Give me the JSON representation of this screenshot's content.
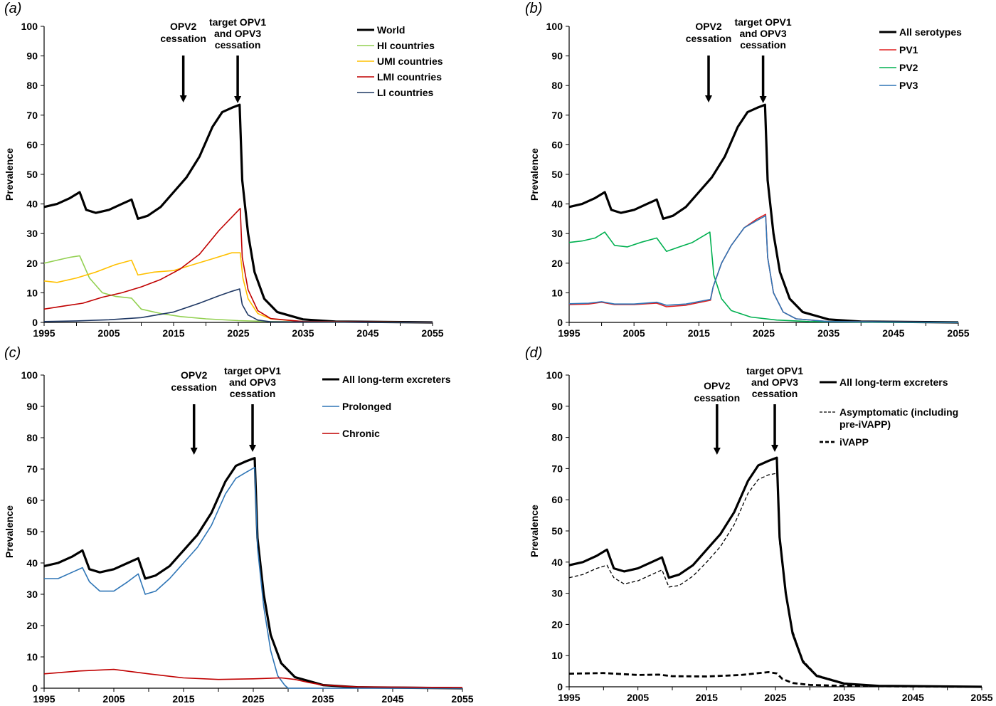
{
  "figure": {
    "y_axis_label": "Prevalence",
    "x_ticks": [
      "1995",
      "2005",
      "2015",
      "2025",
      "2035",
      "2045",
      "2055"
    ],
    "y_ticks": [
      "0",
      "10",
      "20",
      "30",
      "40",
      "50",
      "60",
      "70",
      "80",
      "90",
      "100"
    ],
    "annotations": {
      "opv2_line1": "OPV2",
      "opv2_line2": "cessation",
      "target_line1": "target OPV1",
      "target_line2": "and OPV3",
      "target_line3": "cessation"
    }
  },
  "colors": {
    "world": "#000000",
    "hi": "#92d050",
    "umi": "#ffc000",
    "lmi": "#c00000",
    "li": "#1f3864",
    "pv1": "#e02020",
    "pv2": "#00b050",
    "pv3": "#2e75b6",
    "prolonged": "#2e75b6",
    "chronic": "#c00000"
  },
  "chart_data": [
    {
      "panel": "(a)",
      "type": "line",
      "xlim": [
        1995,
        2055
      ],
      "ylim": [
        0,
        100
      ],
      "ylabel": "Prevalence",
      "annotations": [
        {
          "text": "OPV2 cessation",
          "x": 2016.5
        },
        {
          "text": "target OPV1 and OPV3 cessation",
          "x": 2024.9
        }
      ],
      "series": [
        {
          "name": "World",
          "color": "#000000",
          "width": 3.2,
          "dash": "",
          "x": [
            1995,
            1997,
            1999,
            2000.5,
            2001.5,
            2003,
            2005,
            2007,
            2008.5,
            2009.5,
            2011,
            2013,
            2015,
            2017,
            2019,
            2021,
            2022.5,
            2024,
            2025.2,
            2025.6,
            2026.5,
            2027.5,
            2029,
            2031,
            2035,
            2040,
            2055
          ],
          "y": [
            39,
            40,
            42,
            44,
            38,
            37,
            38,
            40,
            41.5,
            35,
            36,
            39,
            44,
            49,
            56,
            66,
            71,
            72.5,
            73.5,
            48,
            30,
            17,
            8,
            3.5,
            1.0,
            0.3,
            0
          ]
        },
        {
          "name": "HI countries",
          "color": "#92d050",
          "width": 1.6,
          "dash": "",
          "x": [
            1995,
            1997,
            1999,
            2000.5,
            2002,
            2004,
            2006,
            2008.5,
            2010,
            2013,
            2016,
            2020,
            2025,
            2030,
            2040,
            2055
          ],
          "y": [
            20,
            21,
            22,
            22.5,
            15,
            10,
            8.8,
            8.2,
            4.5,
            3,
            2,
            1.2,
            0.6,
            0.3,
            0.1,
            0
          ]
        },
        {
          "name": "UMI countries",
          "color": "#ffc000",
          "width": 1.6,
          "dash": "",
          "x": [
            1995,
            1997,
            2000,
            2003,
            2006,
            2008.5,
            2009.5,
            2012,
            2015,
            2018,
            2021,
            2024,
            2025.3,
            2025.7,
            2026.5,
            2028,
            2030,
            2035,
            2055
          ],
          "y": [
            14,
            13.5,
            15,
            17,
            19.5,
            21,
            16,
            17,
            17.5,
            19.5,
            21.5,
            23.5,
            23.5,
            15,
            8,
            3,
            1.2,
            0.3,
            0
          ]
        },
        {
          "name": "LMI countries",
          "color": "#c00000",
          "width": 1.6,
          "dash": "",
          "x": [
            1995,
            1998,
            2001,
            2004,
            2007,
            2010,
            2013,
            2016,
            2019,
            2022,
            2025.3,
            2025.6,
            2026.5,
            2028,
            2030,
            2035,
            2055
          ],
          "y": [
            4.5,
            5.5,
            6.5,
            8.5,
            10,
            12,
            14.5,
            18,
            23,
            31,
            38.5,
            22,
            11,
            4,
            1.3,
            0.3,
            0
          ]
        },
        {
          "name": "LI countries",
          "color": "#1f3864",
          "width": 1.6,
          "dash": "",
          "x": [
            1995,
            2000,
            2005,
            2010,
            2015,
            2019,
            2022,
            2024,
            2025.2,
            2025.6,
            2026.5,
            2028,
            2030,
            2055
          ],
          "y": [
            0.3,
            0.5,
            0.9,
            1.6,
            3.5,
            6.5,
            9,
            10.5,
            11.3,
            6,
            2.5,
            0.8,
            0.2,
            0
          ]
        }
      ]
    },
    {
      "panel": "(b)",
      "type": "line",
      "xlim": [
        1995,
        2055
      ],
      "ylim": [
        0,
        100
      ],
      "ylabel": "Prevalence",
      "annotations": [
        {
          "text": "OPV2 cessation",
          "x": 2016.5
        },
        {
          "text": "target OPV1 and OPV3 cessation",
          "x": 2024.9
        }
      ],
      "series": [
        {
          "name": "All serotypes",
          "color": "#000000",
          "width": 3.2,
          "dash": "",
          "x": [
            1995,
            1997,
            1999,
            2000.5,
            2001.5,
            2003,
            2005,
            2007,
            2008.5,
            2009.5,
            2011,
            2013,
            2015,
            2017,
            2019,
            2021,
            2022.5,
            2024,
            2025.2,
            2025.6,
            2026.5,
            2027.5,
            2029,
            2031,
            2035,
            2040,
            2055
          ],
          "y": [
            39,
            40,
            42,
            44,
            38,
            37,
            38,
            40,
            41.5,
            35,
            36,
            39,
            44,
            49,
            56,
            66,
            71,
            72.5,
            73.5,
            48,
            30,
            17,
            8,
            3.5,
            1.0,
            0.3,
            0
          ]
        },
        {
          "name": "PV1",
          "color": "#e02020",
          "width": 1.6,
          "dash": "",
          "x": [
            1995,
            1998,
            2000,
            2002,
            2005,
            2008.5,
            2010,
            2013,
            2016.8,
            2017.2,
            2018.5,
            2020,
            2022,
            2024,
            2025.3,
            2025.6,
            2026.5,
            2028,
            2030,
            2035,
            2055
          ],
          "y": [
            6,
            6.2,
            6.8,
            6,
            6,
            6.5,
            5.3,
            5.8,
            7.5,
            12,
            20,
            26,
            32,
            35,
            36.5,
            22,
            10,
            3.5,
            1.2,
            0.3,
            0
          ]
        },
        {
          "name": "PV2",
          "color": "#00b050",
          "width": 1.6,
          "dash": "",
          "x": [
            1995,
            1997,
            1999,
            2000.5,
            2002,
            2004,
            2006,
            2008.5,
            2010,
            2012,
            2014,
            2016.7,
            2017.3,
            2018.5,
            2020,
            2023,
            2027,
            2032,
            2040,
            2055
          ],
          "y": [
            27,
            27.5,
            28.5,
            30.5,
            26,
            25.5,
            27,
            28.5,
            24,
            25.5,
            27,
            30.5,
            16,
            8,
            4,
            1.8,
            0.8,
            0.3,
            0.1,
            0
          ]
        },
        {
          "name": "PV3",
          "color": "#2e75b6",
          "width": 1.6,
          "dash": "",
          "x": [
            1995,
            1998,
            2000,
            2002,
            2005,
            2008.5,
            2010,
            2013,
            2016.8,
            2017.2,
            2018.5,
            2020,
            2022,
            2024,
            2025.3,
            2025.6,
            2026.5,
            2028,
            2030,
            2035,
            2055
          ],
          "y": [
            6.3,
            6.5,
            7,
            6.2,
            6.2,
            6.8,
            5.8,
            6.2,
            7.8,
            12,
            20,
            26,
            32,
            34.5,
            36,
            22,
            10,
            3.5,
            1.2,
            0.3,
            0
          ]
        }
      ]
    },
    {
      "panel": "(c)",
      "type": "line",
      "xlim": [
        1995,
        2055
      ],
      "ylim": [
        0,
        100
      ],
      "ylabel": "Prevalence",
      "annotations": [
        {
          "text": "OPV2 cessation",
          "x": 2016.5
        },
        {
          "text": "target OPV1 and OPV3 cessation",
          "x": 2024.9
        }
      ],
      "series": [
        {
          "name": "All long-term excreters",
          "color": "#000000",
          "width": 3.2,
          "dash": "",
          "x": [
            1995,
            1997,
            1999,
            2000.5,
            2001.5,
            2003,
            2005,
            2007,
            2008.5,
            2009.5,
            2011,
            2013,
            2015,
            2017,
            2019,
            2021,
            2022.5,
            2024,
            2025.2,
            2025.6,
            2026.5,
            2027.5,
            2029,
            2031,
            2035,
            2040,
            2055
          ],
          "y": [
            39,
            40,
            42,
            44,
            38,
            37,
            38,
            40,
            41.5,
            35,
            36,
            39,
            44,
            49,
            56,
            66,
            71,
            72.5,
            73.5,
            48,
            30,
            17,
            8,
            3.5,
            1.0,
            0.3,
            0
          ]
        },
        {
          "name": "Prolonged",
          "color": "#2e75b6",
          "width": 1.6,
          "dash": "",
          "x": [
            1995,
            1997,
            1999,
            2000.5,
            2001.5,
            2003,
            2005,
            2007,
            2008.5,
            2009.5,
            2011,
            2013,
            2015,
            2017,
            2019,
            2021,
            2022.5,
            2024,
            2025.2,
            2025.6,
            2026.5,
            2027.5,
            2028.5,
            2029.5,
            2030,
            2055
          ],
          "y": [
            35,
            35,
            37,
            38.5,
            34,
            31,
            31,
            34,
            36.5,
            30,
            31,
            35,
            40,
            45,
            52,
            62,
            67,
            69,
            70.5,
            45,
            26,
            12,
            4,
            1,
            0,
            0
          ]
        },
        {
          "name": "Chronic",
          "color": "#c00000",
          "width": 1.6,
          "dash": "",
          "x": [
            1995,
            2000,
            2005,
            2010,
            2015,
            2020,
            2025,
            2029,
            2031,
            2033,
            2035,
            2040,
            2055
          ],
          "y": [
            4.6,
            5.5,
            6,
            4.6,
            3.3,
            2.8,
            3.0,
            3.3,
            2.8,
            1.8,
            1.0,
            0.4,
            0.2
          ]
        }
      ]
    },
    {
      "panel": "(d)",
      "type": "line",
      "xlim": [
        1995,
        2055
      ],
      "ylim": [
        0,
        100
      ],
      "ylabel": "Prevalence",
      "annotations": [
        {
          "text": "OPV2 cessation",
          "x": 2016.5
        },
        {
          "text": "target OPV1 and OPV3 cessation",
          "x": 2024.9
        }
      ],
      "series": [
        {
          "name": "All long-term excreters",
          "color": "#000000",
          "width": 3.2,
          "dash": "",
          "x": [
            1995,
            1997,
            1999,
            2000.5,
            2001.5,
            2003,
            2005,
            2007,
            2008.5,
            2009.5,
            2011,
            2013,
            2015,
            2017,
            2019,
            2021,
            2022.5,
            2024,
            2025.2,
            2025.6,
            2026.5,
            2027.5,
            2029,
            2031,
            2035,
            2040,
            2055
          ],
          "y": [
            39,
            40,
            42,
            44,
            38,
            37,
            38,
            40,
            41.5,
            35,
            36,
            39,
            44,
            49,
            56,
            66,
            71,
            72.5,
            73.5,
            48,
            30,
            17,
            8,
            3.5,
            1.0,
            0.3,
            0
          ]
        },
        {
          "name": "Asymptomatic (including pre-iVAPP)",
          "color": "#000000",
          "width": 1.3,
          "dash": "5,3",
          "x": [
            1995,
            1997,
            1999,
            2000.5,
            2001.5,
            2003,
            2005,
            2007,
            2008.5,
            2009.5,
            2011,
            2013,
            2015,
            2017,
            2019,
            2021,
            2022.5,
            2024,
            2025.2,
            2025.6,
            2026.5,
            2027.5,
            2029,
            2031,
            2035,
            2040,
            2055
          ],
          "y": [
            35,
            36,
            38,
            39,
            35,
            33,
            34,
            36,
            37.5,
            32,
            32.5,
            35.5,
            40,
            45,
            52,
            62,
            66.5,
            68,
            68.5,
            46,
            30,
            18,
            8.5,
            3.8,
            1.2,
            0.3,
            0
          ]
        },
        {
          "name": "iVAPP",
          "color": "#000000",
          "width": 2.8,
          "dash": "7,4",
          "x": [
            1995,
            2000,
            2005,
            2008,
            2010,
            2015,
            2020,
            2024,
            2025.2,
            2026,
            2027.5,
            2030,
            2035,
            2045,
            2055
          ],
          "y": [
            4.2,
            4.4,
            3.8,
            3.9,
            3.4,
            3.3,
            3.8,
            4.7,
            4.3,
            2.5,
            1.2,
            0.6,
            0.3,
            0.1,
            0
          ]
        }
      ]
    }
  ]
}
